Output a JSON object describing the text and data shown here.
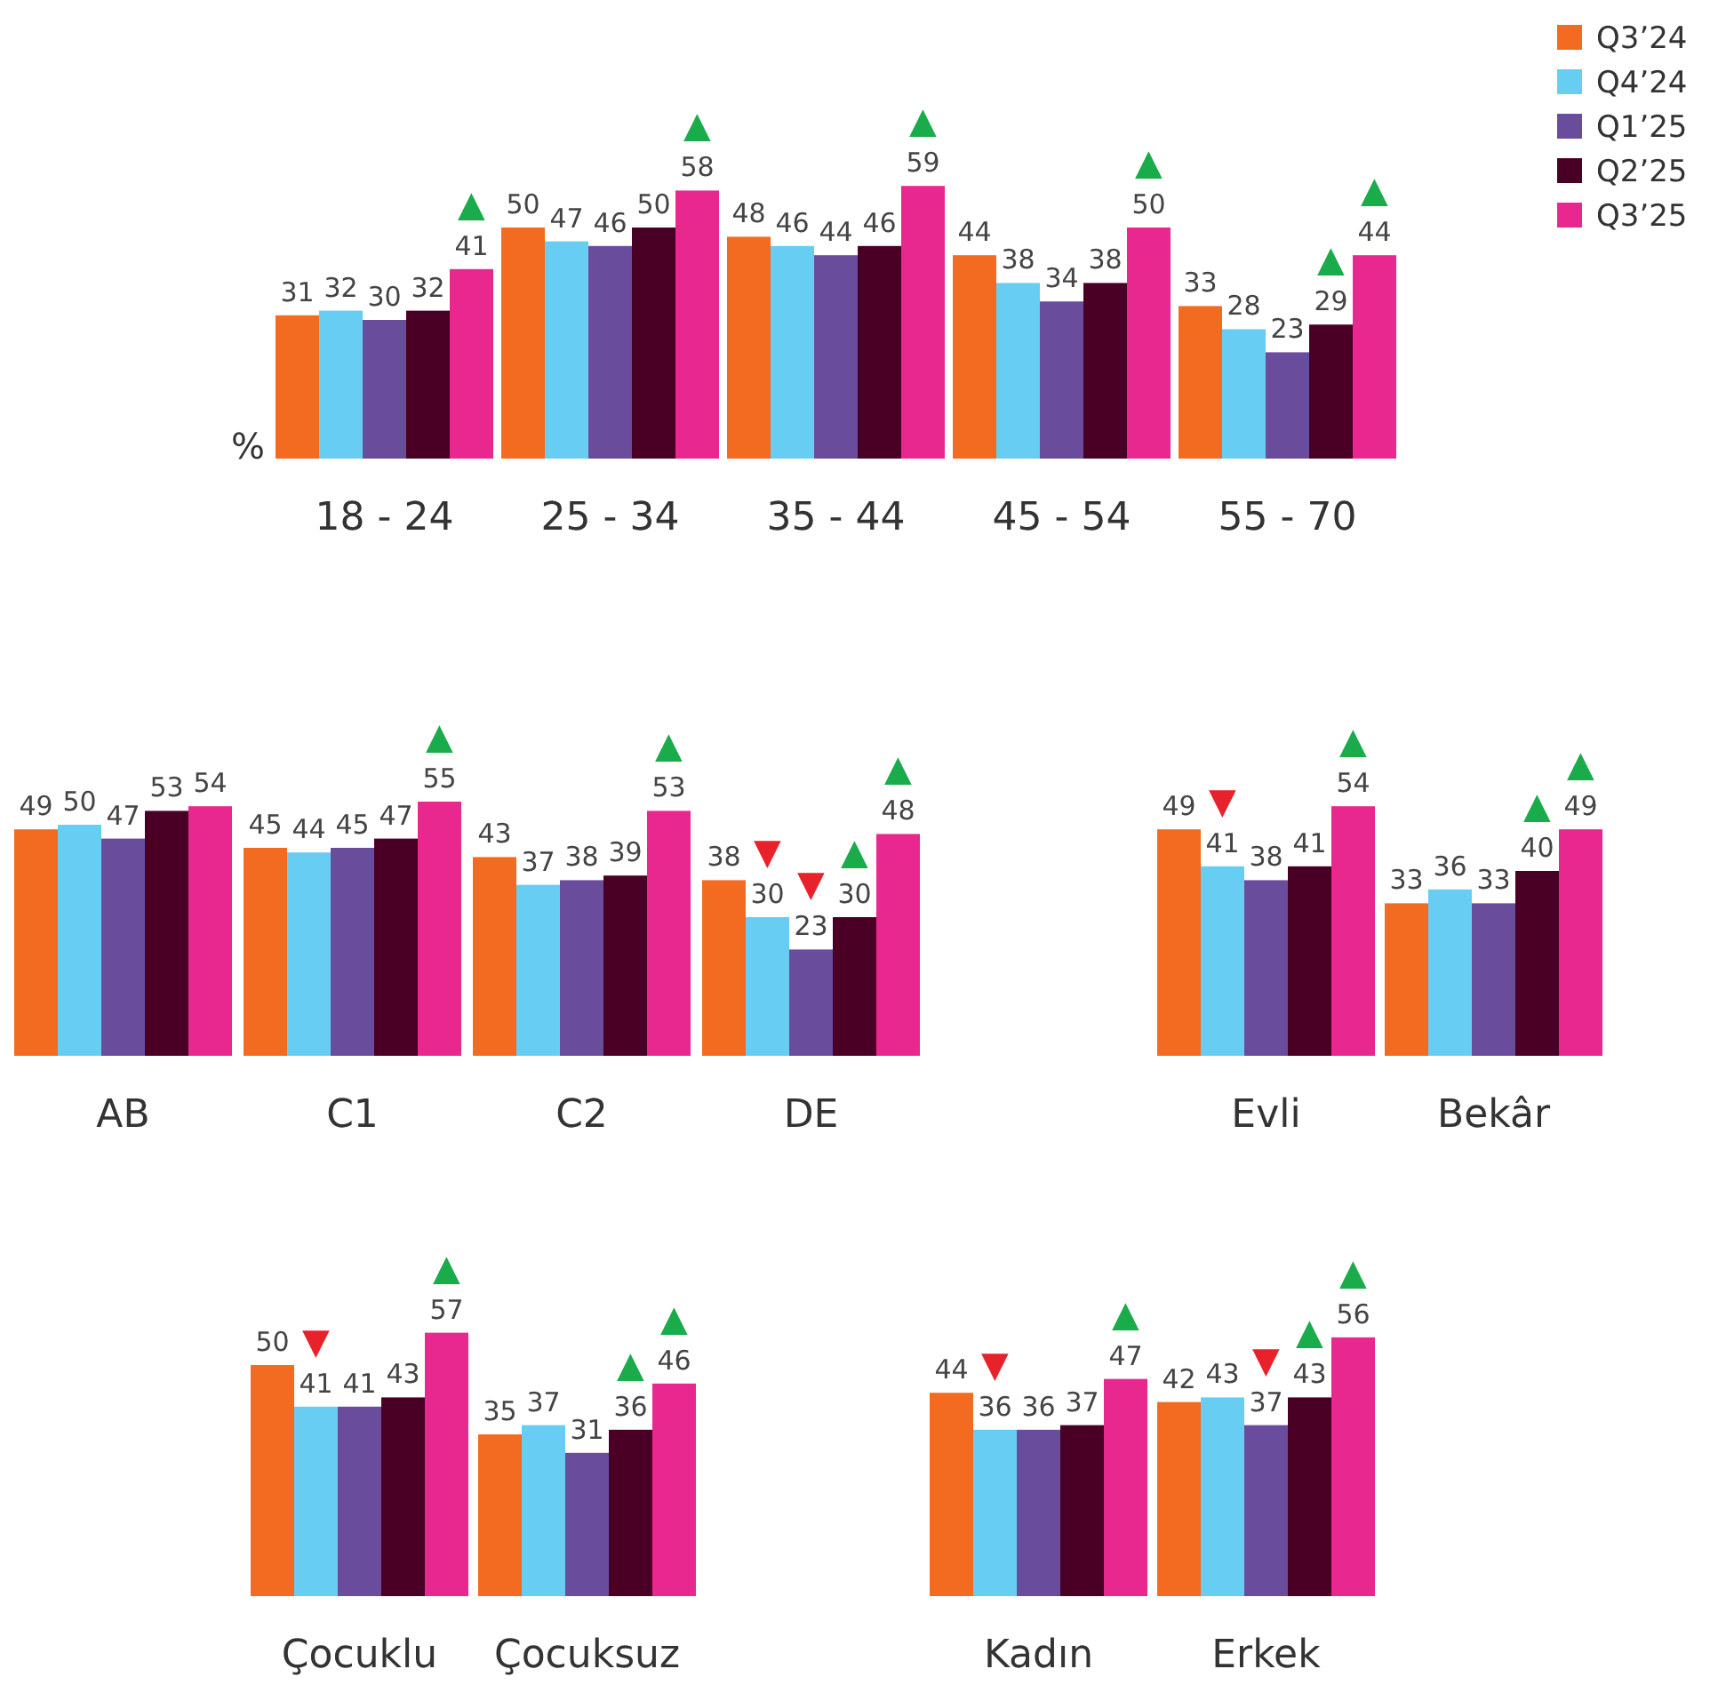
{
  "chart_data": [
    {
      "type": "bar",
      "ylabel": "%",
      "categories": [
        "18 - 24",
        "25 - 34",
        "35 - 44",
        "45 - 54",
        "55 - 70"
      ],
      "legend": "top right",
      "series": [
        {
          "name": "Q3’24",
          "color": "#f26b21",
          "values": [
            31,
            50,
            48,
            44,
            33
          ],
          "value_labels": [
            "31",
            "50",
            "48",
            "44",
            "33"
          ]
        },
        {
          "name": "Q4’24",
          "color": "#67cdf2",
          "values": [
            32,
            47,
            46,
            38,
            28
          ],
          "value_labels": [
            "32",
            "47",
            "46",
            "38",
            "28"
          ]
        },
        {
          "name": "Q1’25",
          "color": "#6a4c9c",
          "values": [
            30,
            46,
            44,
            34,
            23
          ],
          "value_labels": [
            "30",
            "46",
            "44",
            "34",
            "23"
          ]
        },
        {
          "name": "Q2’25",
          "color": "#4a0024",
          "values": [
            32,
            50,
            46,
            38,
            29
          ],
          "value_labels": [
            "32",
            "50",
            "46",
            "38",
            "▲\n29"
          ]
        },
        {
          "name": "Q3’25",
          "color": "#e8288f",
          "values": [
            41,
            58,
            59,
            50,
            44
          ],
          "value_labels": [
            "▲\n41",
            "▲\n58",
            "▲\n59",
            "▲\n50",
            "▲\n44"
          ]
        }
      ]
    },
    {
      "type": "bar",
      "categories": [
        "AB",
        "C1",
        "C2",
        "DE"
      ],
      "series": [
        {
          "color": "#f26b21",
          "values": [
            49,
            45,
            43,
            38
          ],
          "value_labels": [
            "49",
            "45",
            "43",
            "38"
          ]
        },
        {
          "color": "#67cdf2",
          "values": [
            50,
            44,
            37,
            30
          ],
          "value_labels": [
            "50",
            "44",
            "37",
            "▼\n30"
          ]
        },
        {
          "color": "#6a4c9c",
          "values": [
            47,
            45,
            38,
            23
          ],
          "value_labels": [
            "47",
            "45",
            "38",
            "▼\n23"
          ]
        },
        {
          "color": "#4a0024",
          "values": [
            53,
            47,
            39,
            30
          ],
          "value_labels": [
            "53",
            "47",
            "39",
            "▲\n30"
          ]
        },
        {
          "color": "#e8288f",
          "values": [
            54,
            55,
            53,
            48
          ],
          "value_labels": [
            "54",
            "▲\n55",
            "▲\n53",
            "▲\n48"
          ]
        }
      ]
    },
    {
      "type": "bar",
      "categories": [
        "Evli",
        "Bekâr"
      ],
      "series": [
        {
          "color": "#f26b21",
          "values": [
            49,
            33
          ],
          "value_labels": [
            "49",
            "33"
          ]
        },
        {
          "color": "#67cdf2",
          "values": [
            41,
            36
          ],
          "value_labels": [
            "▼\n41",
            "36"
          ]
        },
        {
          "color": "#6a4c9c",
          "values": [
            38,
            33
          ],
          "value_labels": [
            "38",
            "33"
          ]
        },
        {
          "color": "#4a0024",
          "values": [
            41,
            40
          ],
          "value_labels": [
            "41",
            "▲\n40"
          ]
        },
        {
          "color": "#e8288f",
          "values": [
            54,
            49
          ],
          "value_labels": [
            "▲\n54",
            "▲\n49"
          ]
        }
      ]
    },
    {
      "type": "bar",
      "categories": [
        "Çocuklu",
        "Çocuksuz"
      ],
      "series": [
        {
          "color": "#f26b21",
          "values": [
            50,
            35
          ],
          "value_labels": [
            "50",
            "35"
          ]
        },
        {
          "color": "#67cdf2",
          "values": [
            41,
            37
          ],
          "value_labels": [
            "▼\n41",
            "37"
          ]
        },
        {
          "color": "#6a4c9c",
          "values": [
            41,
            31
          ],
          "value_labels": [
            "41",
            "31"
          ]
        },
        {
          "color": "#4a0024",
          "values": [
            43,
            36
          ],
          "value_labels": [
            "43",
            "▲\n36"
          ]
        },
        {
          "color": "#e8288f",
          "values": [
            57,
            46
          ],
          "value_labels": [
            "▲\n57",
            "▲\n46"
          ]
        }
      ]
    },
    {
      "type": "bar",
      "categories": [
        "Kadın",
        "Erkek"
      ],
      "series": [
        {
          "color": "#f26b21",
          "values": [
            44,
            42
          ],
          "value_labels": [
            "44",
            "42"
          ]
        },
        {
          "color": "#67cdf2",
          "values": [
            36,
            43
          ],
          "value_labels": [
            "▼\n36",
            "43"
          ]
        },
        {
          "color": "#6a4c9c",
          "values": [
            36,
            37
          ],
          "value_labels": [
            "36",
            "▼\n37"
          ]
        },
        {
          "color": "#4a0024",
          "values": [
            37,
            43
          ],
          "value_labels": [
            "37",
            "▲\n43"
          ]
        },
        {
          "color": "#e8288f",
          "values": [
            47,
            56
          ],
          "value_labels": [
            "▲\n47",
            "▲\n56"
          ]
        }
      ]
    }
  ]
}
